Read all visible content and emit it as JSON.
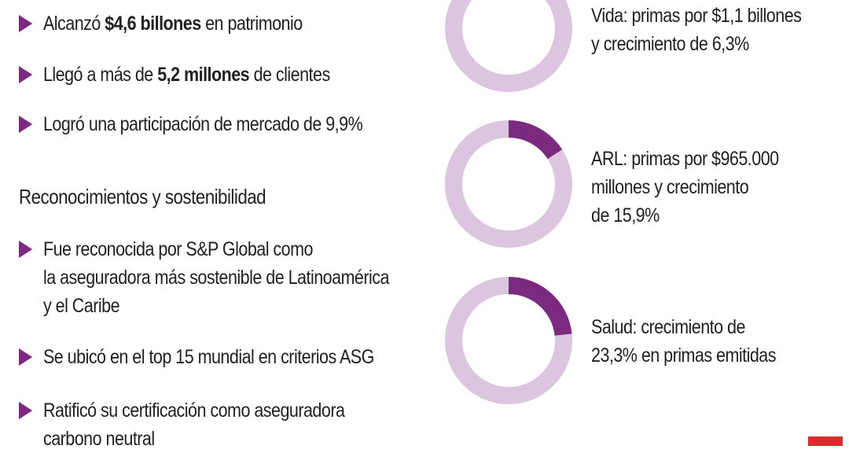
{
  "bullets_top": [
    {
      "pre": "Alcanzó ",
      "bold": "$4,6 billones",
      "post": " en patrimonio"
    },
    {
      "pre": "Llegó a más de ",
      "bold": "5,2 millones",
      "post": " de clientes"
    },
    {
      "pre": "Logró una participación de mercado de 9,9%",
      "bold": "",
      "post": ""
    }
  ],
  "section_heading": "Reconocimientos y sostenibilidad",
  "bullets_bottom": [
    {
      "lines": [
        "Fue reconocida por S&P Global como",
        "la aseguradora más sostenible de Latinoamérica",
        "y el Caribe"
      ]
    },
    {
      "lines": [
        "Se ubicó en el top 15 mundial en criterios ASG"
      ]
    },
    {
      "lines": [
        "Ratificó su certificación como aseguradora",
        "carbono neutral"
      ]
    }
  ],
  "colors": {
    "accent": "#7b2a7f",
    "track": "#dcc5df",
    "brand_red": "#d42e2e"
  },
  "chart_data": [
    {
      "type": "pie",
      "variant": "donut",
      "label_lines": [
        "Vida: primas por $1,1 billones",
        "y crecimiento de 6,3%"
      ],
      "value_percent": null
    },
    {
      "type": "pie",
      "variant": "donut",
      "label_lines": [
        "ARL: primas por $965.000",
        "millones y crecimiento",
        "de 15,9%"
      ],
      "value_percent": 15.9
    },
    {
      "type": "pie",
      "variant": "donut",
      "label_lines": [
        "Salud: crecimiento de",
        "23,3% en primas emitidas"
      ],
      "value_percent": 23.3
    }
  ]
}
